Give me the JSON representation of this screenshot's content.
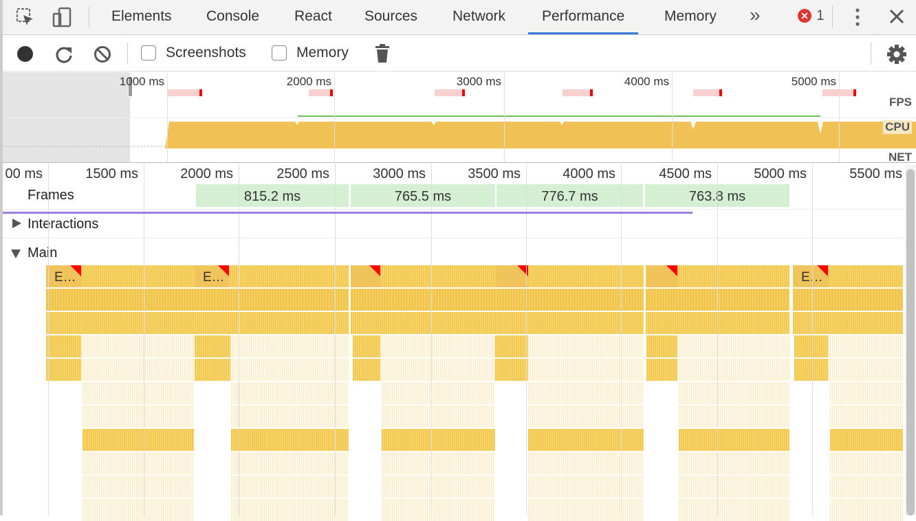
{
  "tabs": [
    {
      "label": "Elements"
    },
    {
      "label": "Console"
    },
    {
      "label": "React"
    },
    {
      "label": "Sources"
    },
    {
      "label": "Network"
    },
    {
      "label": "Performance",
      "active": true
    },
    {
      "label": "Memory"
    }
  ],
  "error_count": "1",
  "more_tabs": "»",
  "toolbar": {
    "screenshots_label": "Screenshots",
    "memory_label": "Memory"
  },
  "overview": {
    "ticks": [
      "1000 ms",
      "2000 ms",
      "3000 ms",
      "4000 ms",
      "5000 ms"
    ],
    "lanes": {
      "fps": "FPS",
      "cpu": "CPU",
      "net": "NET"
    }
  },
  "ruler": {
    "ticks": [
      "00 ms",
      "1500 ms",
      "2000 ms",
      "2500 ms",
      "3000 ms",
      "3500 ms",
      "4000 ms",
      "4500 ms",
      "5000 ms",
      "5500 ms"
    ]
  },
  "frames": {
    "label": "Frames",
    "durations": [
      "815.2 ms",
      "765.5 ms",
      "776.7 ms",
      "763.8 ms"
    ]
  },
  "tracks": {
    "interactions": "Interactions",
    "main": "Main"
  },
  "events": {
    "label": "E…"
  },
  "colors": {
    "accent": "#3879d9",
    "scripting": "#f2c94c",
    "error": "#e0342f",
    "frames": "#d5efd2",
    "interaction": "#9b7fe0"
  }
}
